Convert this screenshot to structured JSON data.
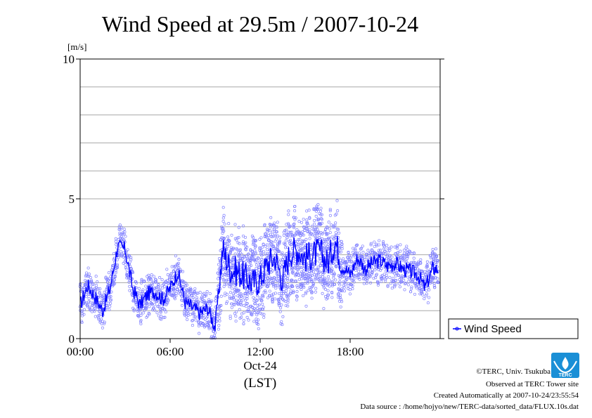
{
  "chart_data": {
    "type": "line",
    "title": "Wind Speed at 29.5m / 2007-10-24",
    "ylabel": "[m/s]",
    "xlabel": "(LST)",
    "date_label": "Oct-24",
    "ylim": [
      0,
      10
    ],
    "y_ticks": [
      "0",
      "5",
      "10"
    ],
    "xlim": [
      0,
      24
    ],
    "x_ticks": [
      "00:00",
      "06:00",
      "12:00",
      "18:00"
    ],
    "grid": true,
    "legend_placement": "right",
    "series": [
      {
        "name": "Wind Speed",
        "color": "#0000ff",
        "x": [
          0,
          0.5,
          1,
          1.5,
          2,
          2.5,
          3,
          3.5,
          4,
          4.5,
          5,
          5.5,
          6,
          6.5,
          7,
          7.5,
          8,
          8.5,
          9,
          9.5,
          10,
          10.5,
          11,
          11.5,
          12,
          12.5,
          13,
          13.5,
          14,
          14.5,
          15,
          15.5,
          16,
          16.5,
          17,
          17.5,
          18,
          18.5,
          19,
          19.5,
          20,
          20.5,
          21,
          21.5,
          22,
          22.5,
          23,
          23.5
        ],
        "y": [
          1.2,
          1.9,
          1.5,
          1.0,
          1.8,
          3.3,
          3.2,
          1.8,
          1.2,
          1.6,
          1.7,
          1.4,
          1.8,
          2.4,
          1.3,
          1.1,
          0.9,
          1.1,
          0.4,
          3.2,
          2.5,
          2.4,
          2.2,
          2.0,
          2.1,
          2.7,
          2.9,
          2.1,
          3.1,
          3.2,
          2.9,
          3.0,
          3.1,
          2.7,
          3.5,
          2.6,
          2.3,
          2.9,
          2.5,
          2.7,
          2.8,
          2.6,
          2.7,
          2.5,
          2.4,
          2.3,
          1.8,
          2.5
        ]
      }
    ]
  },
  "footer": {
    "copyright": "©TERC, Univ. Tsukuba",
    "observed": "Observed at TERC Tower site",
    "created": "Created Automatically at 2007-10-24/23:55:54",
    "source": "Data source : /home/hojyo/new/TERC-data/sorted_data/FLUX.10s.dat",
    "logo_text": "TERC"
  }
}
